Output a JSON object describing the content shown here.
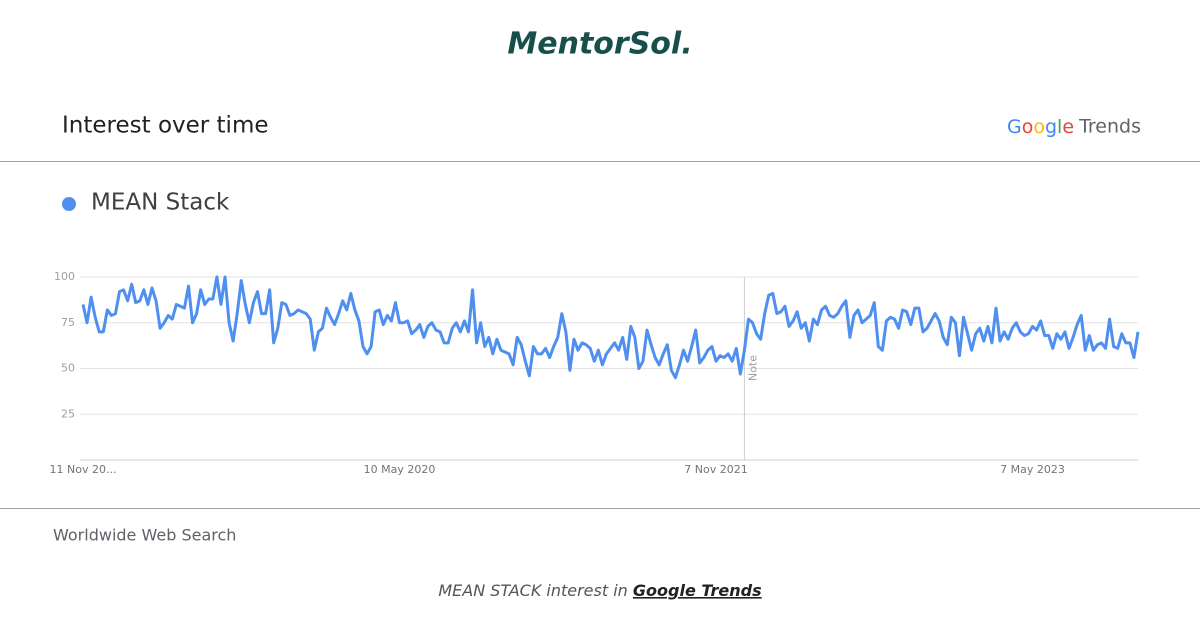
{
  "brand": "MentorSol.",
  "header": {
    "title": "Interest over time",
    "source_google": "Google",
    "source_trends": "Trends"
  },
  "footer": {
    "region": "Worldwide Web Search"
  },
  "caption": {
    "text": "MEAN STACK interest in",
    "link": "Google Trends"
  },
  "chart_data": {
    "type": "line",
    "note": "Note",
    "categories": [
      "11 Nov 20...",
      null,
      null,
      null,
      null,
      null,
      null,
      null,
      null,
      null,
      null,
      null,
      null,
      null,
      null,
      null,
      null,
      null,
      null,
      null,
      null,
      null,
      null,
      null,
      null,
      null,
      null,
      null,
      null,
      null,
      null,
      null,
      null,
      null,
      null,
      null,
      null,
      null,
      null,
      null,
      null,
      null,
      null,
      null,
      null,
      null,
      null,
      null,
      null,
      null,
      null,
      null,
      null,
      null,
      null,
      null,
      null,
      null,
      null,
      null,
      null,
      null,
      null,
      null,
      null,
      null,
      null,
      null,
      null,
      null,
      null,
      null,
      null,
      null,
      null,
      null,
      null,
      null,
      "10 May 2020",
      null,
      null,
      null,
      null,
      null,
      null,
      null,
      null,
      null,
      null,
      null,
      null,
      null,
      null,
      null,
      null,
      null,
      null,
      null,
      null,
      null,
      null,
      null,
      null,
      null,
      null,
      null,
      null,
      null,
      null,
      null,
      null,
      null,
      null,
      null,
      null,
      null,
      null,
      null,
      null,
      null,
      null,
      null,
      null,
      null,
      null,
      null,
      null,
      null,
      null,
      null,
      null,
      null,
      null,
      null,
      null,
      null,
      null,
      null,
      null,
      null,
      null,
      null,
      null,
      null,
      null,
      null,
      null,
      null,
      null,
      null,
      null,
      null,
      null,
      null,
      null,
      null,
      "7 Nov 2021",
      null,
      null,
      null,
      null,
      null,
      null,
      null,
      null,
      null,
      null,
      null,
      null,
      null,
      null,
      null,
      null,
      null,
      null,
      null,
      null,
      null,
      null,
      null,
      null,
      null,
      null,
      null,
      null,
      null,
      null,
      null,
      null,
      null,
      null,
      null,
      null,
      null,
      null,
      null,
      null,
      null,
      null,
      null,
      null,
      null,
      null,
      null,
      null,
      null,
      null,
      null,
      null,
      null,
      null,
      null,
      null,
      null,
      null,
      null,
      null,
      null,
      null,
      null,
      null,
      null,
      null,
      null,
      null,
      null,
      null,
      null,
      null,
      null,
      null,
      null,
      null,
      null,
      "7 May 2023",
      null,
      null,
      null,
      null,
      null,
      null,
      null,
      null,
      null,
      null,
      null,
      null,
      null,
      null,
      null,
      null,
      null,
      null,
      null,
      null,
      null,
      null,
      null,
      null,
      null,
      null
    ],
    "series": [
      {
        "name": "MEAN Stack",
        "color": "#4f8ff0",
        "values": [
          85,
          75,
          89,
          78,
          70,
          70,
          82,
          79,
          80,
          92,
          93,
          87,
          96,
          86,
          87,
          93,
          85,
          94,
          87,
          72,
          75,
          79,
          77,
          85,
          84,
          83,
          95,
          75,
          80,
          93,
          85,
          88,
          88,
          100,
          85,
          100,
          75,
          65,
          80,
          98,
          85,
          75,
          86,
          92,
          80,
          80,
          93,
          64,
          72,
          86,
          85,
          79,
          80,
          82,
          81,
          80,
          77,
          60,
          70,
          72,
          83,
          78,
          74,
          80,
          87,
          82,
          91,
          82,
          76,
          62,
          58,
          62,
          81,
          82,
          74,
          79,
          76,
          86,
          75,
          75,
          76,
          69,
          71,
          74,
          67,
          73,
          75,
          71,
          70,
          64,
          64,
          72,
          75,
          70,
          76,
          70,
          93,
          64,
          75,
          62,
          67,
          58,
          66,
          60,
          59,
          58,
          52,
          67,
          63,
          54,
          46,
          62,
          58,
          58,
          61,
          56,
          62,
          67,
          80,
          70,
          49,
          66,
          60,
          64,
          63,
          61,
          54,
          60,
          52,
          58,
          61,
          64,
          60,
          67,
          55,
          73,
          67,
          50,
          54,
          71,
          63,
          56,
          52,
          58,
          63,
          49,
          45,
          52,
          60,
          54,
          62,
          71,
          53,
          56,
          60,
          62,
          54,
          57,
          56,
          58,
          54,
          61,
          47,
          60,
          77,
          75,
          69,
          66,
          80,
          90,
          91,
          80,
          81,
          84,
          73,
          76,
          81,
          72,
          75,
          65,
          77,
          74,
          82,
          84,
          79,
          78,
          80,
          84,
          87,
          67,
          79,
          82,
          75,
          77,
          79,
          86,
          62,
          60,
          76,
          78,
          77,
          72,
          82,
          81,
          74,
          83,
          83,
          70,
          72,
          76,
          80,
          76,
          67,
          63,
          78,
          75,
          57,
          78,
          69,
          60,
          69,
          72,
          65,
          73,
          64,
          83,
          65,
          70,
          66,
          72,
          75,
          70,
          68,
          69,
          73,
          71,
          76,
          68,
          68,
          61,
          69,
          66,
          70,
          61,
          67,
          74,
          79,
          60,
          68,
          60,
          63,
          64,
          61,
          77,
          62,
          61,
          69,
          64,
          64,
          56,
          70
        ]
      }
    ],
    "ylim": [
      0,
      100
    ],
    "yticks": [
      25,
      50,
      75,
      100
    ],
    "grid": true
  }
}
